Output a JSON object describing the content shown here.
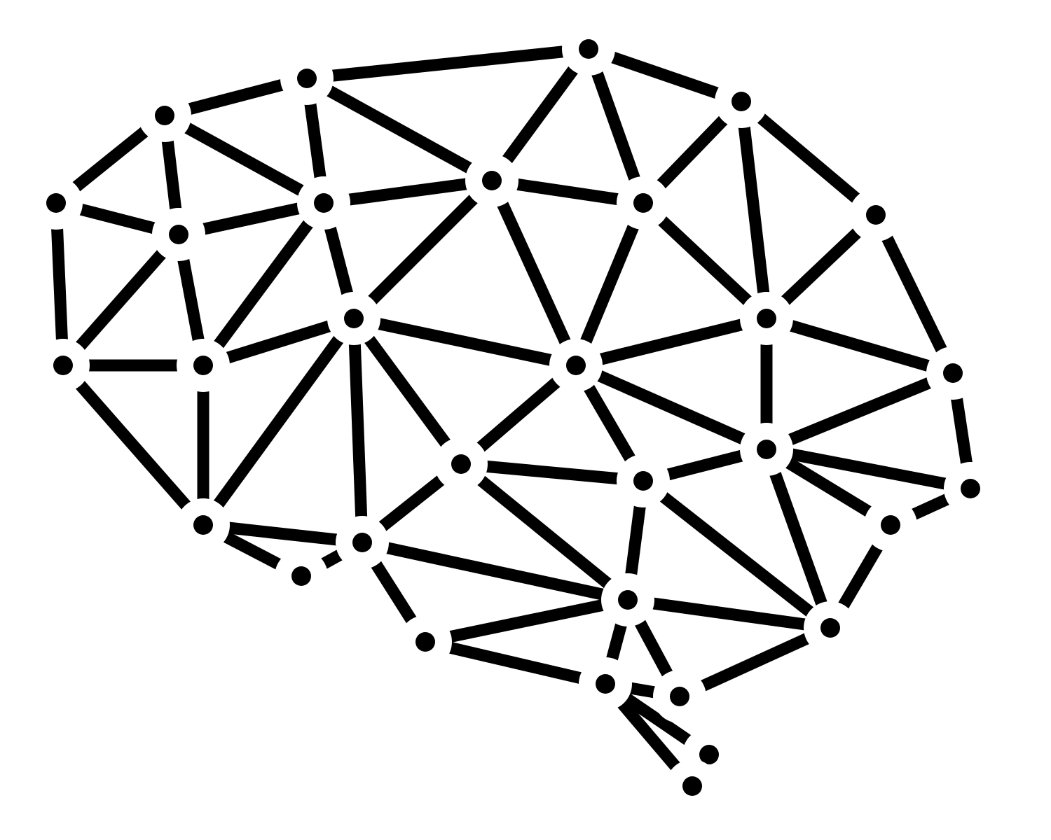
{
  "illustration": {
    "subject": "brain-network-icon",
    "background_color": "#ffffff",
    "ink_color": "#000000"
  }
}
